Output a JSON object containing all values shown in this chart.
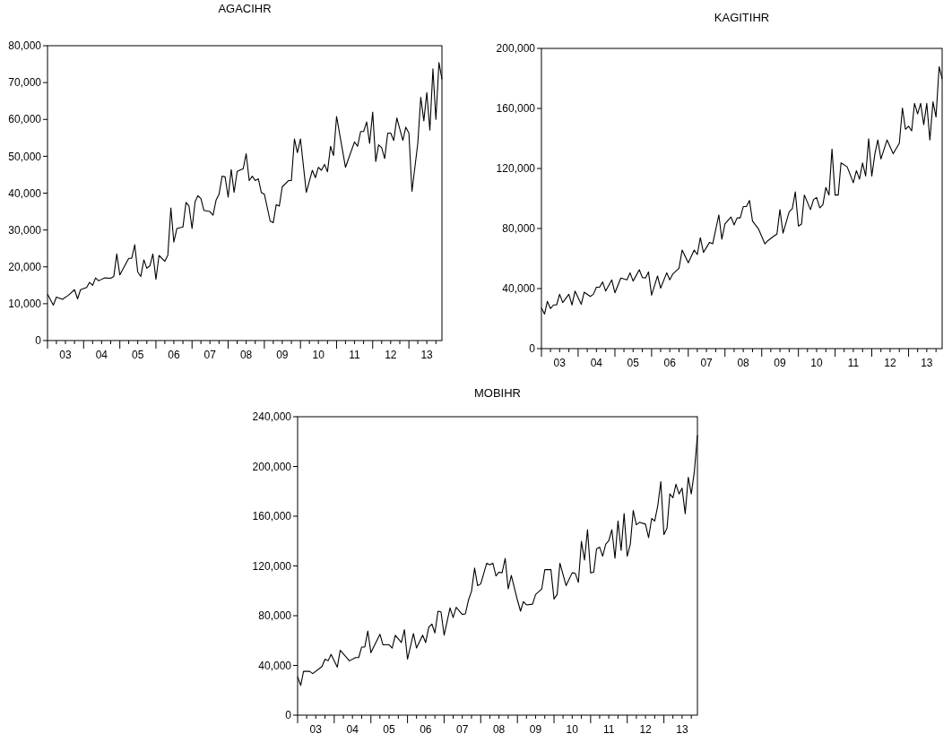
{
  "chart_data": [
    {
      "type": "line",
      "title": "AGACIHR",
      "xlim": [
        "2003-01",
        "2013-12"
      ],
      "ylim": [
        0,
        80000
      ],
      "xticks": [
        {
          "value": "2003-01",
          "label": null
        },
        {
          "value": "2003-04",
          "label": null
        },
        {
          "value": "2003-07",
          "label": "03"
        },
        {
          "value": "2003-10",
          "label": null
        },
        {
          "value": "2004-01",
          "label": null
        },
        {
          "value": "2004-04",
          "label": null
        },
        {
          "value": "2004-07",
          "label": "04"
        },
        {
          "value": "2004-10",
          "label": null
        },
        {
          "value": "2005-01",
          "label": null
        },
        {
          "value": "2005-04",
          "label": null
        },
        {
          "value": "2005-07",
          "label": "05"
        },
        {
          "value": "2005-10",
          "label": null
        },
        {
          "value": "2006-01",
          "label": null
        },
        {
          "value": "2006-04",
          "label": null
        },
        {
          "value": "2006-07",
          "label": "06"
        },
        {
          "value": "2006-10",
          "label": null
        },
        {
          "value": "2007-01",
          "label": null
        },
        {
          "value": "2007-04",
          "label": null
        },
        {
          "value": "2007-07",
          "label": "07"
        },
        {
          "value": "2007-10",
          "label": null
        },
        {
          "value": "2008-01",
          "label": null
        },
        {
          "value": "2008-04",
          "label": null
        },
        {
          "value": "2008-07",
          "label": "08"
        },
        {
          "value": "2008-10",
          "label": null
        },
        {
          "value": "2009-01",
          "label": null
        },
        {
          "value": "2009-04",
          "label": null
        },
        {
          "value": "2009-07",
          "label": "09"
        },
        {
          "value": "2009-10",
          "label": null
        },
        {
          "value": "2010-01",
          "label": null
        },
        {
          "value": "2010-04",
          "label": null
        },
        {
          "value": "2010-07",
          "label": "10"
        },
        {
          "value": "2010-10",
          "label": null
        },
        {
          "value": "2011-01",
          "label": null
        },
        {
          "value": "2011-04",
          "label": null
        },
        {
          "value": "2011-07",
          "label": "11"
        },
        {
          "value": "2011-10",
          "label": null
        },
        {
          "value": "2012-01",
          "label": null
        },
        {
          "value": "2012-04",
          "label": null
        },
        {
          "value": "2012-07",
          "label": "12"
        },
        {
          "value": "2012-10",
          "label": null
        },
        {
          "value": "2013-01",
          "label": null
        },
        {
          "value": "2013-04",
          "label": null
        },
        {
          "value": "2013-07",
          "label": "13"
        },
        {
          "value": "2013-10",
          "label": null
        }
      ],
      "yticks": [
        {
          "value": 0,
          "label": "0"
        },
        {
          "value": 10000,
          "label": "10,000"
        },
        {
          "value": 20000,
          "label": "20,000"
        },
        {
          "value": 30000,
          "label": "30,000"
        },
        {
          "value": 40000,
          "label": "40,000"
        },
        {
          "value": 50000,
          "label": "50,000"
        },
        {
          "value": 60000,
          "label": "60,000"
        },
        {
          "value": 70000,
          "label": "70,000"
        },
        {
          "value": 80000,
          "label": "80,000"
        }
      ],
      "series": [
        {
          "color": "#000000",
          "x": [
            "2003-01",
            "2003-03",
            "2003-04",
            "2003-06",
            "2003-08",
            "2003-10",
            "2003-11",
            "2003-12",
            "2004-02",
            "2004-03",
            "2004-04",
            "2004-05",
            "2004-06",
            "2004-08",
            "2004-10",
            "2004-11",
            "2004-12",
            "2005-01",
            "2005-04",
            "2005-05",
            "2005-06",
            "2005-07",
            "2005-08",
            "2005-09",
            "2005-10",
            "2005-11",
            "2005-12",
            "2006-01",
            "2006-02",
            "2006-04",
            "2006-05",
            "2006-06",
            "2006-07",
            "2006-08",
            "2006-10",
            "2006-11",
            "2006-12",
            "2007-01",
            "2007-02",
            "2007-03",
            "2007-04",
            "2007-05",
            "2007-07",
            "2007-08",
            "2007-09",
            "2007-10",
            "2007-11",
            "2007-12",
            "2008-01",
            "2008-02",
            "2008-03",
            "2008-04",
            "2008-06",
            "2008-07",
            "2008-08",
            "2008-09",
            "2008-10",
            "2008-11",
            "2008-12",
            "2009-01",
            "2009-03",
            "2009-04",
            "2009-05",
            "2009-06",
            "2009-07",
            "2009-09",
            "2009-10",
            "2009-11",
            "2009-12",
            "2010-01",
            "2010-03",
            "2010-05",
            "2010-06",
            "2010-07",
            "2010-08",
            "2010-09",
            "2010-10",
            "2010-11",
            "2010-12",
            "2011-01",
            "2011-04",
            "2011-07",
            "2011-08",
            "2011-09",
            "2011-10",
            "2011-11",
            "2011-12",
            "2012-01",
            "2012-02",
            "2012-03",
            "2012-04",
            "2012-05",
            "2012-06",
            "2012-07",
            "2012-08",
            "2012-09",
            "2012-11",
            "2012-12",
            "2013-01",
            "2013-02",
            "2013-04",
            "2013-05",
            "2013-06",
            "2013-07",
            "2013-08",
            "2013-09",
            "2013-10",
            "2013-11",
            "2013-12"
          ],
          "values": [
            12600,
            9600,
            11800,
            11200,
            12300,
            13800,
            11300,
            13800,
            14400,
            15800,
            15000,
            17000,
            16200,
            17000,
            16900,
            17400,
            23500,
            17800,
            22300,
            22300,
            26000,
            18600,
            17400,
            21900,
            19600,
            20300,
            23500,
            16600,
            23100,
            21500,
            23100,
            36000,
            26700,
            30400,
            30800,
            37500,
            36500,
            30400,
            37700,
            39300,
            38500,
            35300,
            35000,
            34000,
            38100,
            39700,
            44600,
            44400,
            38900,
            46400,
            40200,
            45900,
            46600,
            50700,
            43400,
            44600,
            43400,
            43900,
            40200,
            39700,
            32400,
            32000,
            36900,
            36500,
            41700,
            43400,
            43400,
            54700,
            51000,
            54700,
            40200,
            46200,
            44200,
            47000,
            46200,
            47800,
            45800,
            52700,
            50200,
            60800,
            47000,
            53900,
            52700,
            56700,
            56700,
            59300,
            53500,
            62000,
            48600,
            53100,
            52300,
            49400,
            56300,
            56300,
            54300,
            60400,
            54300,
            57900,
            56300,
            40500,
            53500,
            66000,
            59600,
            67300,
            57100,
            73700,
            60000,
            75400,
            70900
          ]
        }
      ]
    },
    {
      "type": "line",
      "title": "KAGITIHR",
      "xlim": [
        "2003-01",
        "2013-12"
      ],
      "ylim": [
        0,
        200000
      ],
      "xticks": [
        {
          "value": "2003-01",
          "label": null
        },
        {
          "value": "2003-04",
          "label": null
        },
        {
          "value": "2003-07",
          "label": "03"
        },
        {
          "value": "2003-10",
          "label": null
        },
        {
          "value": "2004-01",
          "label": null
        },
        {
          "value": "2004-04",
          "label": null
        },
        {
          "value": "2004-07",
          "label": "04"
        },
        {
          "value": "2004-10",
          "label": null
        },
        {
          "value": "2005-01",
          "label": null
        },
        {
          "value": "2005-04",
          "label": null
        },
        {
          "value": "2005-07",
          "label": "05"
        },
        {
          "value": "2005-10",
          "label": null
        },
        {
          "value": "2006-01",
          "label": null
        },
        {
          "value": "2006-04",
          "label": null
        },
        {
          "value": "2006-07",
          "label": "06"
        },
        {
          "value": "2006-10",
          "label": null
        },
        {
          "value": "2007-01",
          "label": null
        },
        {
          "value": "2007-04",
          "label": null
        },
        {
          "value": "2007-07",
          "label": "07"
        },
        {
          "value": "2007-10",
          "label": null
        },
        {
          "value": "2008-01",
          "label": null
        },
        {
          "value": "2008-04",
          "label": null
        },
        {
          "value": "2008-07",
          "label": "08"
        },
        {
          "value": "2008-10",
          "label": null
        },
        {
          "value": "2009-01",
          "label": null
        },
        {
          "value": "2009-04",
          "label": null
        },
        {
          "value": "2009-07",
          "label": "09"
        },
        {
          "value": "2009-10",
          "label": null
        },
        {
          "value": "2010-01",
          "label": null
        },
        {
          "value": "2010-04",
          "label": null
        },
        {
          "value": "2010-07",
          "label": "10"
        },
        {
          "value": "2010-10",
          "label": null
        },
        {
          "value": "2011-01",
          "label": null
        },
        {
          "value": "2011-04",
          "label": null
        },
        {
          "value": "2011-07",
          "label": "11"
        },
        {
          "value": "2011-10",
          "label": null
        },
        {
          "value": "2012-01",
          "label": null
        },
        {
          "value": "2012-04",
          "label": null
        },
        {
          "value": "2012-07",
          "label": "12"
        },
        {
          "value": "2012-10",
          "label": null
        },
        {
          "value": "2013-01",
          "label": null
        },
        {
          "value": "2013-04",
          "label": null
        },
        {
          "value": "2013-07",
          "label": "13"
        },
        {
          "value": "2013-10",
          "label": null
        }
      ],
      "yticks": [
        {
          "value": 0,
          "label": "0"
        },
        {
          "value": 40000,
          "label": "40,000"
        },
        {
          "value": 80000,
          "label": "80,000"
        },
        {
          "value": 120000,
          "label": "120,000"
        },
        {
          "value": 160000,
          "label": "160,000"
        },
        {
          "value": 200000,
          "label": "200,000"
        }
      ],
      "series": [
        {
          "color": "#000000",
          "x": [
            "2003-01",
            "2003-02",
            "2003-03",
            "2003-04",
            "2003-05",
            "2003-06",
            "2003-07",
            "2003-08",
            "2003-10",
            "2003-11",
            "2003-12",
            "2004-02",
            "2004-03",
            "2004-05",
            "2004-06",
            "2004-07",
            "2004-08",
            "2004-09",
            "2004-10",
            "2004-12",
            "2005-01",
            "2005-03",
            "2005-05",
            "2005-06",
            "2005-07",
            "2005-09",
            "2005-10",
            "2005-11",
            "2005-12",
            "2006-01",
            "2006-03",
            "2006-04",
            "2006-06",
            "2006-07",
            "2006-08",
            "2006-10",
            "2006-11",
            "2007-01",
            "2007-03",
            "2007-04",
            "2007-05",
            "2007-06",
            "2007-08",
            "2007-09",
            "2007-11",
            "2007-12",
            "2008-01",
            "2008-03",
            "2008-04",
            "2008-05",
            "2008-06",
            "2008-07",
            "2008-08",
            "2008-09",
            "2008-10",
            "2008-12",
            "2009-02",
            "2009-03",
            "2009-05",
            "2009-06",
            "2009-07",
            "2009-08",
            "2009-10",
            "2009-11",
            "2009-12",
            "2010-01",
            "2010-02",
            "2010-03",
            "2010-05",
            "2010-06",
            "2010-07",
            "2010-08",
            "2010-09",
            "2010-10",
            "2010-11",
            "2010-12",
            "2011-01",
            "2011-02",
            "2011-03",
            "2011-05",
            "2011-07",
            "2011-08",
            "2011-09",
            "2011-10",
            "2011-11",
            "2011-12",
            "2012-01",
            "2012-02",
            "2012-03",
            "2012-04",
            "2012-06",
            "2012-08",
            "2012-10",
            "2012-11",
            "2012-12",
            "2013-01",
            "2013-02",
            "2013-03",
            "2013-04",
            "2013-05",
            "2013-06",
            "2013-07",
            "2013-08",
            "2013-09",
            "2013-10",
            "2013-11",
            "2013-12"
          ],
          "values": [
            27100,
            23000,
            31500,
            26700,
            29100,
            29100,
            36200,
            30700,
            36200,
            29100,
            38300,
            29500,
            37600,
            34800,
            36200,
            40900,
            40900,
            44400,
            38300,
            45800,
            37200,
            47000,
            45800,
            50500,
            45000,
            52500,
            47400,
            47000,
            51100,
            35600,
            48400,
            40300,
            50500,
            45800,
            49800,
            53500,
            65700,
            57200,
            65700,
            62700,
            73900,
            64100,
            70800,
            69800,
            89100,
            72900,
            83000,
            87700,
            82400,
            87100,
            87100,
            94600,
            94600,
            98700,
            85000,
            79600,
            69800,
            71800,
            74900,
            76300,
            92600,
            76900,
            91100,
            93200,
            104400,
            81600,
            83000,
            102300,
            92600,
            99300,
            100700,
            93800,
            95800,
            107400,
            102300,
            132900,
            102300,
            102300,
            123700,
            121100,
            110500,
            118600,
            112900,
            123700,
            115000,
            139800,
            115000,
            129800,
            139000,
            126300,
            139000,
            129800,
            136900,
            160300,
            146100,
            148100,
            145100,
            163400,
            156300,
            163400,
            149200,
            163400,
            139000,
            164400,
            154200,
            187800,
            179700
          ]
        }
      ]
    },
    {
      "type": "line",
      "title": "MOBIHR",
      "xlim": [
        "2003-01",
        "2013-12"
      ],
      "ylim": [
        0,
        240000
      ],
      "xticks": [
        {
          "value": "2003-01",
          "label": null
        },
        {
          "value": "2003-04",
          "label": null
        },
        {
          "value": "2003-07",
          "label": "03"
        },
        {
          "value": "2003-10",
          "label": null
        },
        {
          "value": "2004-01",
          "label": null
        },
        {
          "value": "2004-04",
          "label": null
        },
        {
          "value": "2004-07",
          "label": "04"
        },
        {
          "value": "2004-10",
          "label": null
        },
        {
          "value": "2005-01",
          "label": null
        },
        {
          "value": "2005-04",
          "label": null
        },
        {
          "value": "2005-07",
          "label": "05"
        },
        {
          "value": "2005-10",
          "label": null
        },
        {
          "value": "2006-01",
          "label": null
        },
        {
          "value": "2006-04",
          "label": null
        },
        {
          "value": "2006-07",
          "label": "06"
        },
        {
          "value": "2006-10",
          "label": null
        },
        {
          "value": "2007-01",
          "label": null
        },
        {
          "value": "2007-04",
          "label": null
        },
        {
          "value": "2007-07",
          "label": "07"
        },
        {
          "value": "2007-10",
          "label": null
        },
        {
          "value": "2008-01",
          "label": null
        },
        {
          "value": "2008-04",
          "label": null
        },
        {
          "value": "2008-07",
          "label": "08"
        },
        {
          "value": "2008-10",
          "label": null
        },
        {
          "value": "2009-01",
          "label": null
        },
        {
          "value": "2009-04",
          "label": null
        },
        {
          "value": "2009-07",
          "label": "09"
        },
        {
          "value": "2009-10",
          "label": null
        },
        {
          "value": "2010-01",
          "label": null
        },
        {
          "value": "2010-04",
          "label": null
        },
        {
          "value": "2010-07",
          "label": "10"
        },
        {
          "value": "2010-10",
          "label": null
        },
        {
          "value": "2011-01",
          "label": null
        },
        {
          "value": "2011-04",
          "label": null
        },
        {
          "value": "2011-07",
          "label": "11"
        },
        {
          "value": "2011-10",
          "label": null
        },
        {
          "value": "2012-01",
          "label": null
        },
        {
          "value": "2012-04",
          "label": null
        },
        {
          "value": "2012-07",
          "label": "12"
        },
        {
          "value": "2012-10",
          "label": null
        },
        {
          "value": "2013-01",
          "label": null
        },
        {
          "value": "2013-04",
          "label": null
        },
        {
          "value": "2013-07",
          "label": "13"
        },
        {
          "value": "2013-10",
          "label": null
        }
      ],
      "yticks": [
        {
          "value": 0,
          "label": "0"
        },
        {
          "value": 40000,
          "label": "40,000"
        },
        {
          "value": 80000,
          "label": "80,000"
        },
        {
          "value": 120000,
          "label": "120,000"
        },
        {
          "value": 160000,
          "label": "160,000"
        },
        {
          "value": 200000,
          "label": "200,000"
        },
        {
          "value": 240000,
          "label": "240,000"
        }
      ],
      "series": [
        {
          "color": "#000000",
          "x": [
            "2003-01",
            "2003-02",
            "2003-03",
            "2003-05",
            "2003-06",
            "2003-09",
            "2003-10",
            "2003-11",
            "2003-12",
            "2004-02",
            "2004-03",
            "2004-06",
            "2004-08",
            "2004-09",
            "2004-10",
            "2004-11",
            "2004-12",
            "2005-01",
            "2005-04",
            "2005-05",
            "2005-07",
            "2005-08",
            "2005-09",
            "2005-11",
            "2005-12",
            "2006-01",
            "2006-03",
            "2006-04",
            "2006-06",
            "2006-07",
            "2006-08",
            "2006-09",
            "2006-10",
            "2006-11",
            "2006-12",
            "2007-01",
            "2007-03",
            "2007-04",
            "2007-05",
            "2007-07",
            "2007-08",
            "2007-09",
            "2007-10",
            "2007-11",
            "2007-12",
            "2008-01",
            "2008-03",
            "2008-04",
            "2008-05",
            "2008-06",
            "2008-07",
            "2008-08",
            "2008-09",
            "2008-10",
            "2008-11",
            "2009-01",
            "2009-02",
            "2009-03",
            "2009-04",
            "2009-06",
            "2009-07",
            "2009-09",
            "2009-10",
            "2009-12",
            "2010-01",
            "2010-02",
            "2010-03",
            "2010-05",
            "2010-07",
            "2010-08",
            "2010-09",
            "2010-10",
            "2010-11",
            "2010-12",
            "2011-01",
            "2011-02",
            "2011-03",
            "2011-04",
            "2011-05",
            "2011-06",
            "2011-07",
            "2011-08",
            "2011-09",
            "2011-10",
            "2011-11",
            "2011-12",
            "2012-01",
            "2012-02",
            "2012-03",
            "2012-04",
            "2012-05",
            "2012-07",
            "2012-08",
            "2012-09",
            "2012-10",
            "2012-11",
            "2012-12",
            "2013-01",
            "2013-02",
            "2013-03",
            "2013-04",
            "2013-05",
            "2013-06",
            "2013-07",
            "2013-08",
            "2013-09",
            "2013-10",
            "2013-11",
            "2013-12"
          ],
          "values": [
            30900,
            23900,
            35200,
            35200,
            33400,
            39100,
            45000,
            43700,
            48900,
            38600,
            52200,
            43700,
            46300,
            46300,
            54800,
            54800,
            67700,
            50200,
            65100,
            56600,
            56600,
            54000,
            64300,
            58400,
            68700,
            45000,
            65600,
            54000,
            64300,
            58400,
            70700,
            73300,
            66100,
            83600,
            83100,
            64300,
            86200,
            78500,
            86700,
            81000,
            81500,
            92600,
            99600,
            118300,
            104200,
            105500,
            122200,
            120900,
            122200,
            111900,
            115000,
            114500,
            126100,
            101600,
            112400,
            92600,
            83600,
            91300,
            88700,
            89300,
            97000,
            101600,
            117000,
            117000,
            93400,
            97000,
            122200,
            104200,
            114500,
            114000,
            106800,
            139700,
            124800,
            149200,
            114500,
            115000,
            133700,
            135100,
            127800,
            137600,
            140200,
            149200,
            126100,
            156100,
            132400,
            162100,
            127800,
            137600,
            164600,
            153100,
            155100,
            153600,
            142800,
            158200,
            156100,
            168500,
            187800,
            145300,
            150500,
            177900,
            174900,
            185700,
            177900,
            182600,
            162100,
            191300,
            177900,
            196300,
            225100
          ]
        }
      ]
    }
  ]
}
